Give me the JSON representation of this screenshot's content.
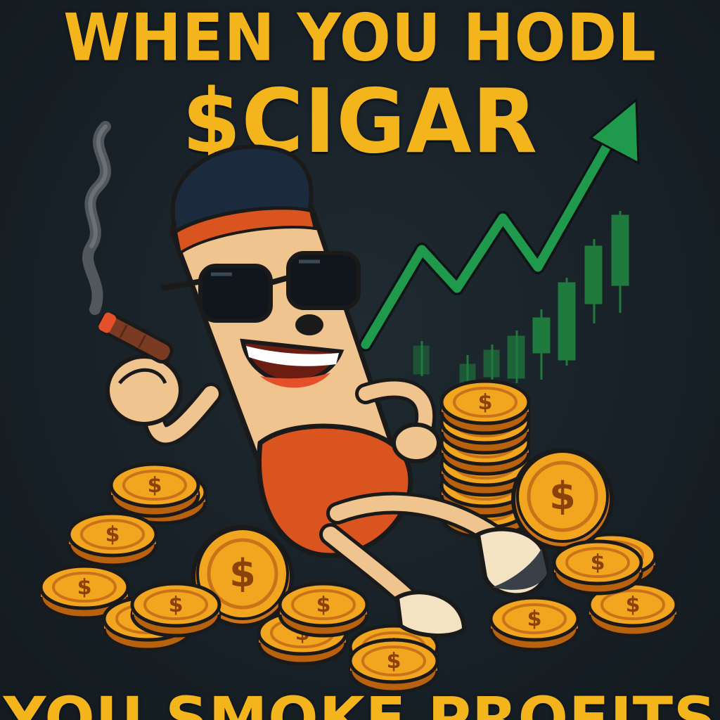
{
  "poster": {
    "headline_top": "WHEN YOU HODL",
    "ticker": "$CIGAR",
    "headline_bottom": "YOU SMOKE PROFITS"
  },
  "colors": {
    "background": "#172026",
    "title_yellow": "#f4b51c",
    "chart_green": "#1f9a4c",
    "coin_gold": "#f2a51e",
    "cigar_body": "#f0c48f",
    "cigar_band": "#d9541e"
  },
  "icons": {
    "trend": "up-trend-arrow-icon",
    "coin": "dollar-coin-icon",
    "smoke": "smoke-icon"
  }
}
